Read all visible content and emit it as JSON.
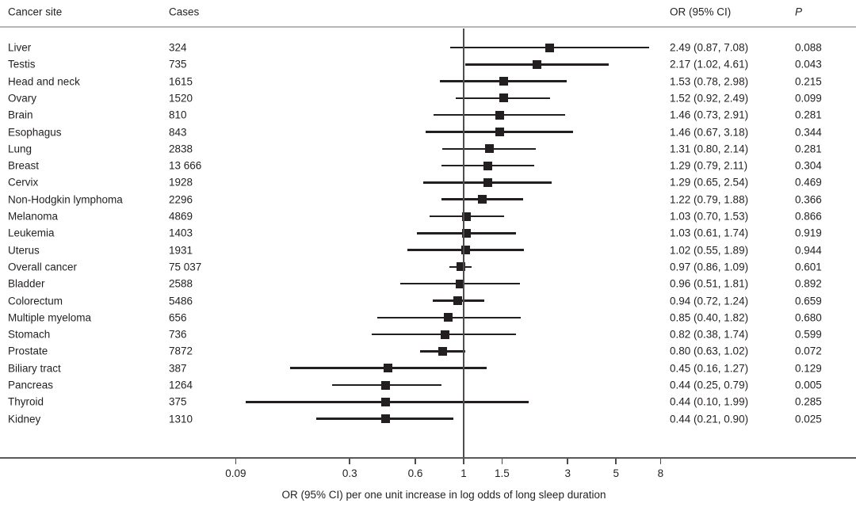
{
  "figure": {
    "columns": {
      "site": "Cancer site",
      "cases": "Cases",
      "or_ci": "OR (95% CI)",
      "p": "P"
    },
    "axis_label": "OR (95% CI) per one unit increase in log odds of long sleep duration"
  },
  "colors": {
    "text": "#231f20",
    "marker": "#231f20",
    "axis_line": "#58595b",
    "separator": "#b7b7b7"
  },
  "chart_data": {
    "type": "forest",
    "x_scale": "log",
    "xlabel": "OR (95% CI) per one unit increase in log odds of long sleep duration",
    "x_ticks": [
      "0.09",
      "0.3",
      "0.6",
      "1",
      "1.5",
      "3",
      "5",
      "8"
    ],
    "x_range": [
      0.07,
      10
    ],
    "reference_value": 1,
    "grid": false,
    "columns": [
      "Cancer site",
      "Cases",
      "OR (95% CI)",
      "P"
    ],
    "rows": [
      {
        "site": "Liver",
        "cases": "324",
        "or": 2.49,
        "ci_low": 0.87,
        "ci_high": 7.08,
        "or_ci": "2.49 (0.87, 7.08)",
        "p": "0.088"
      },
      {
        "site": "Testis",
        "cases": "735",
        "or": 2.17,
        "ci_low": 1.02,
        "ci_high": 4.61,
        "or_ci": "2.17 (1.02, 4.61)",
        "p": "0.043"
      },
      {
        "site": "Head and neck",
        "cases": "1615",
        "or": 1.53,
        "ci_low": 0.78,
        "ci_high": 2.98,
        "or_ci": "1.53 (0.78, 2.98)",
        "p": "0.215"
      },
      {
        "site": "Ovary",
        "cases": "1520",
        "or": 1.52,
        "ci_low": 0.92,
        "ci_high": 2.49,
        "or_ci": "1.52 (0.92, 2.49)",
        "p": "0.099"
      },
      {
        "site": "Brain",
        "cases": "810",
        "or": 1.46,
        "ci_low": 0.73,
        "ci_high": 2.91,
        "or_ci": "1.46 (0.73, 2.91)",
        "p": "0.281"
      },
      {
        "site": "Esophagus",
        "cases": "843",
        "or": 1.46,
        "ci_low": 0.67,
        "ci_high": 3.18,
        "or_ci": "1.46 (0.67, 3.18)",
        "p": "0.344"
      },
      {
        "site": "Lung",
        "cases": "2838",
        "or": 1.31,
        "ci_low": 0.8,
        "ci_high": 2.14,
        "or_ci": "1.31 (0.80, 2.14)",
        "p": "0.281"
      },
      {
        "site": "Breast",
        "cases": "13 666",
        "or": 1.29,
        "ci_low": 0.79,
        "ci_high": 2.11,
        "or_ci": "1.29 (0.79, 2.11)",
        "p": "0.304"
      },
      {
        "site": "Cervix",
        "cases": "1928",
        "or": 1.29,
        "ci_low": 0.65,
        "ci_high": 2.54,
        "or_ci": "1.29 (0.65, 2.54)",
        "p": "0.469"
      },
      {
        "site": "Non-Hodgkin lymphoma",
        "cases": "2296",
        "or": 1.22,
        "ci_low": 0.79,
        "ci_high": 1.88,
        "or_ci": "1.22 (0.79, 1.88)",
        "p": "0.366"
      },
      {
        "site": "Melanoma",
        "cases": "4869",
        "or": 1.03,
        "ci_low": 0.7,
        "ci_high": 1.53,
        "or_ci": "1.03 (0.70, 1.53)",
        "p": "0.866"
      },
      {
        "site": "Leukemia",
        "cases": "1403",
        "or": 1.03,
        "ci_low": 0.61,
        "ci_high": 1.74,
        "or_ci": "1.03 (0.61, 1.74)",
        "p": "0.919"
      },
      {
        "site": "Uterus",
        "cases": "1931",
        "or": 1.02,
        "ci_low": 0.55,
        "ci_high": 1.89,
        "or_ci": "1.02 (0.55, 1.89)",
        "p": "0.944"
      },
      {
        "site": "Overall cancer",
        "cases": "75 037",
        "or": 0.97,
        "ci_low": 0.86,
        "ci_high": 1.09,
        "or_ci": "0.97 (0.86, 1.09)",
        "p": "0.601"
      },
      {
        "site": "Bladder",
        "cases": "2588",
        "or": 0.96,
        "ci_low": 0.51,
        "ci_high": 1.81,
        "or_ci": "0.96 (0.51, 1.81)",
        "p": "0.892"
      },
      {
        "site": "Colorectum",
        "cases": "5486",
        "or": 0.94,
        "ci_low": 0.72,
        "ci_high": 1.24,
        "or_ci": "0.94 (0.72, 1.24)",
        "p": "0.659"
      },
      {
        "site": "Multiple myeloma",
        "cases": "656",
        "or": 0.85,
        "ci_low": 0.4,
        "ci_high": 1.82,
        "or_ci": "0.85 (0.40, 1.82)",
        "p": "0.680"
      },
      {
        "site": "Stomach",
        "cases": "736",
        "or": 0.82,
        "ci_low": 0.38,
        "ci_high": 1.74,
        "or_ci": "0.82 (0.38, 1.74)",
        "p": "0.599"
      },
      {
        "site": "Prostate",
        "cases": "7872",
        "or": 0.8,
        "ci_low": 0.63,
        "ci_high": 1.02,
        "or_ci": "0.80 (0.63, 1.02)",
        "p": "0.072"
      },
      {
        "site": "Biliary tract",
        "cases": "387",
        "or": 0.45,
        "ci_low": 0.16,
        "ci_high": 1.27,
        "or_ci": "0.45 (0.16, 1.27)",
        "p": "0.129"
      },
      {
        "site": "Pancreas",
        "cases": "1264",
        "or": 0.44,
        "ci_low": 0.25,
        "ci_high": 0.79,
        "or_ci": "0.44 (0.25, 0.79)",
        "p": "0.005"
      },
      {
        "site": "Thyroid",
        "cases": "375",
        "or": 0.44,
        "ci_low": 0.1,
        "ci_high": 1.99,
        "or_ci": "0.44 (0.10, 1.99)",
        "p": "0.285"
      },
      {
        "site": "Kidney",
        "cases": "1310",
        "or": 0.44,
        "ci_low": 0.21,
        "ci_high": 0.9,
        "or_ci": "0.44 (0.21, 0.90)",
        "p": "0.025"
      }
    ]
  }
}
